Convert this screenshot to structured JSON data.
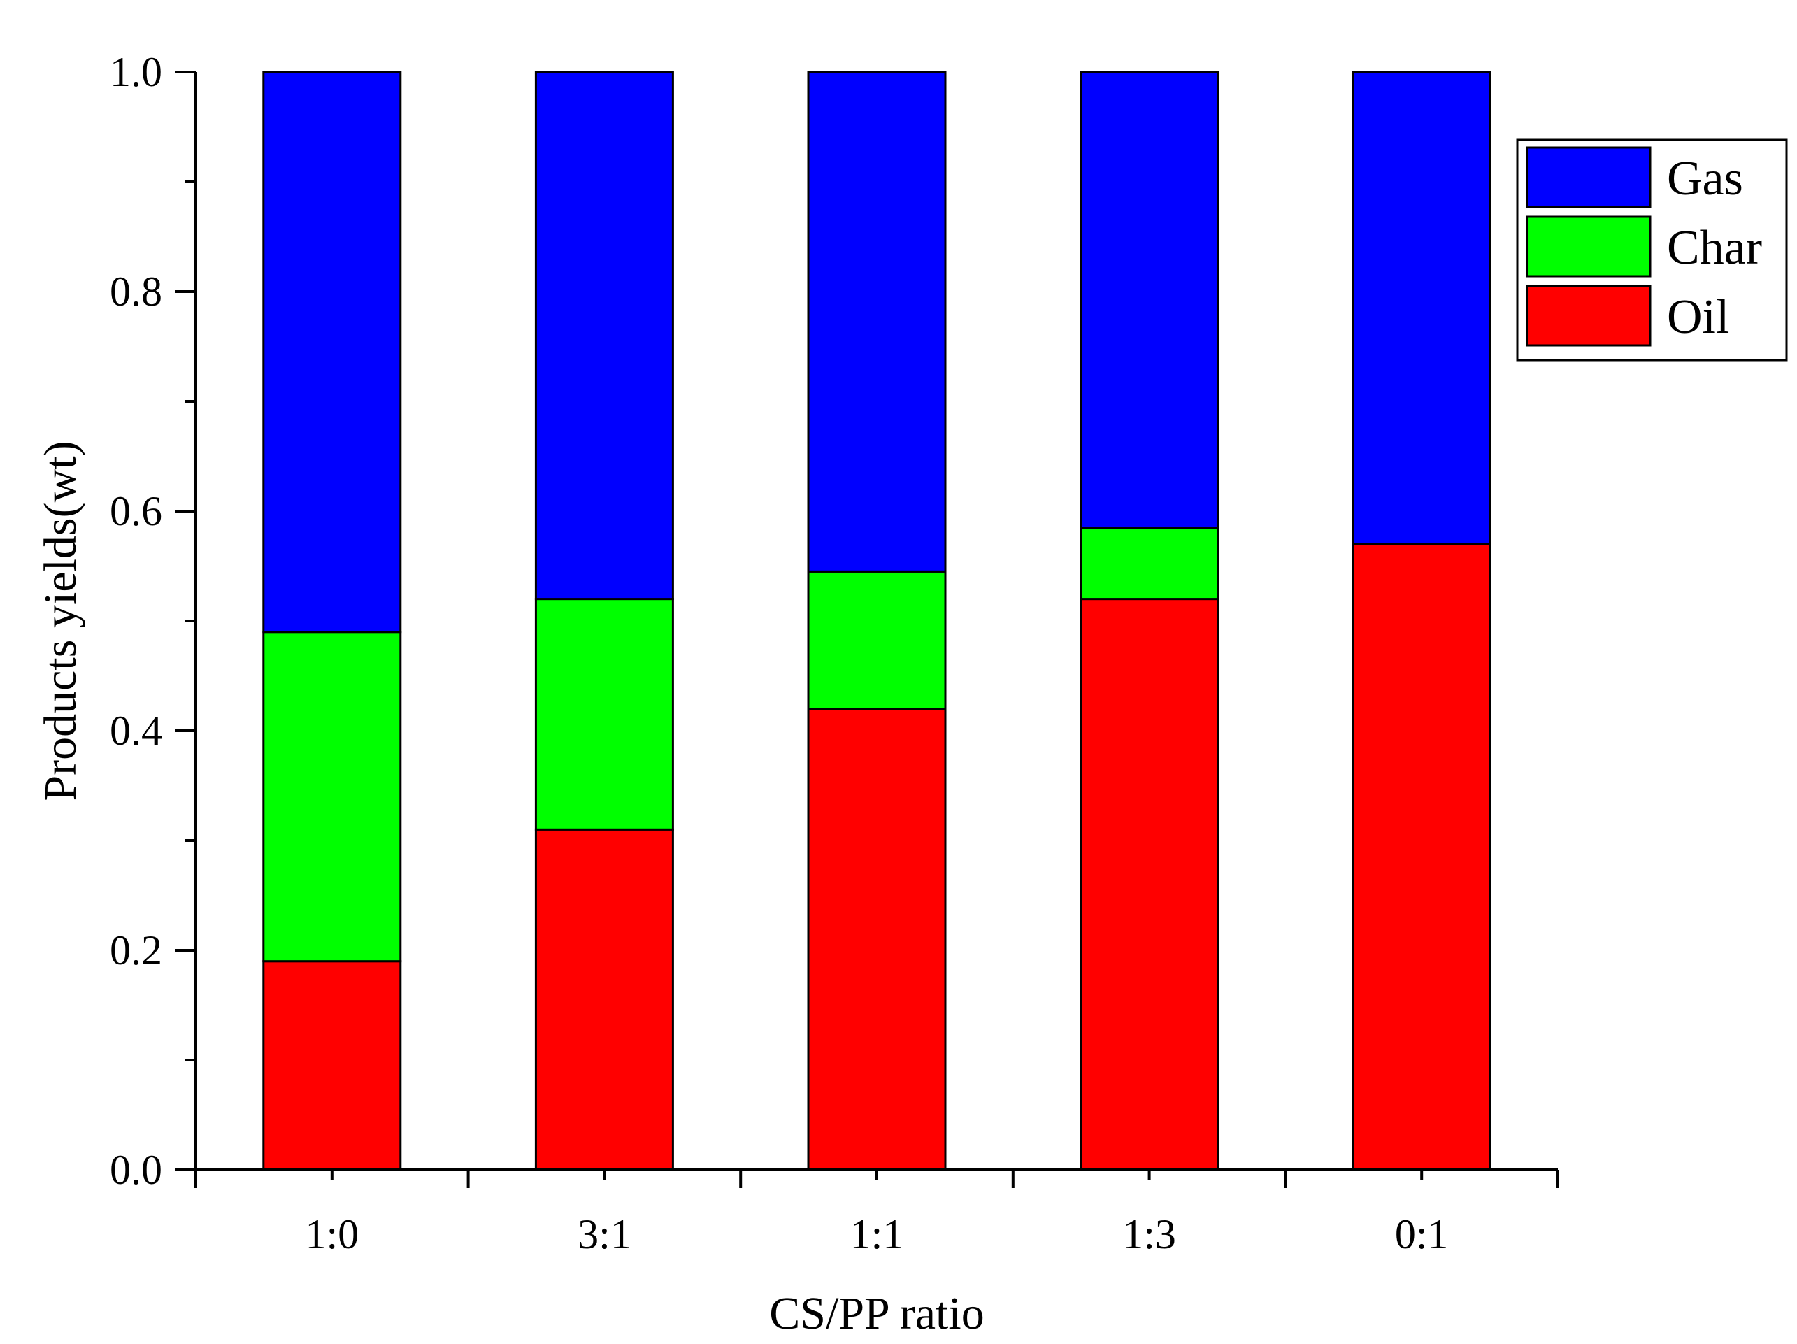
{
  "chart_data": {
    "type": "bar",
    "stacked": true,
    "title": "",
    "xlabel": "CS/PP ratio",
    "ylabel": "Products yields(wt)",
    "ylim": [
      0,
      1.0
    ],
    "yticks": [
      "0.0",
      "0.2",
      "0.4",
      "0.6",
      "0.8",
      "1.0"
    ],
    "categories": [
      "1:0",
      "3:1",
      "1:1",
      "1:3",
      "0:1"
    ],
    "series": [
      {
        "name": "Oil",
        "color": "#ff0000",
        "values": [
          0.19,
          0.31,
          0.42,
          0.52,
          0.57
        ]
      },
      {
        "name": "Char",
        "color": "#00ff00",
        "values": [
          0.3,
          0.21,
          0.125,
          0.065,
          0.0
        ]
      },
      {
        "name": "Gas",
        "color": "#0000ff",
        "values": [
          0.51,
          0.48,
          0.455,
          0.415,
          0.43
        ]
      }
    ],
    "legend": {
      "position": "top-right",
      "entries": [
        "Gas",
        "Char",
        "Oil"
      ]
    }
  }
}
